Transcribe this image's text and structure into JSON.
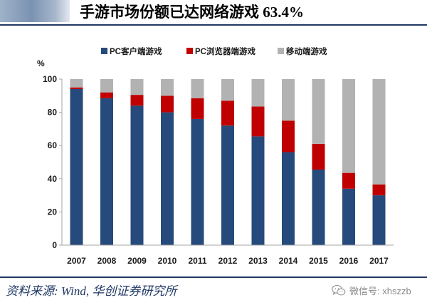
{
  "chart_data": {
    "type": "bar",
    "stacked": true,
    "title": "手游市场份额已达网络游戏 63.4%",
    "ylabel": "%",
    "categories": [
      "2007",
      "2008",
      "2009",
      "2010",
      "2011",
      "2012",
      "2013",
      "2014",
      "2015",
      "2016",
      "2017"
    ],
    "series": [
      {
        "name": "PC客户端游戏",
        "color": "#264a7b",
        "values": [
          94,
          88.5,
          84,
          80,
          76,
          72,
          65.5,
          56,
          45.5,
          34,
          30
        ]
      },
      {
        "name": "PC浏览器端游戏",
        "color": "#c00000",
        "values": [
          1,
          3.5,
          6.5,
          10,
          12.5,
          15,
          18,
          19,
          15.5,
          9.5,
          6.6
        ]
      },
      {
        "name": "移动端游戏",
        "color": "#b2b2b2",
        "values": [
          5,
          8,
          9.5,
          10,
          11.5,
          13,
          16.5,
          25,
          39,
          56.5,
          63.4
        ]
      }
    ],
    "ylim": [
      0,
      100
    ],
    "yticks": [
      0,
      20,
      40,
      60,
      80,
      100
    ],
    "grid": false,
    "legend": "top-center"
  },
  "footer": {
    "source": "资料来源: Wind, 华创证券研究所",
    "watermark": "微信号: xhszzb",
    "watermark_icon": "wechat-icon"
  }
}
